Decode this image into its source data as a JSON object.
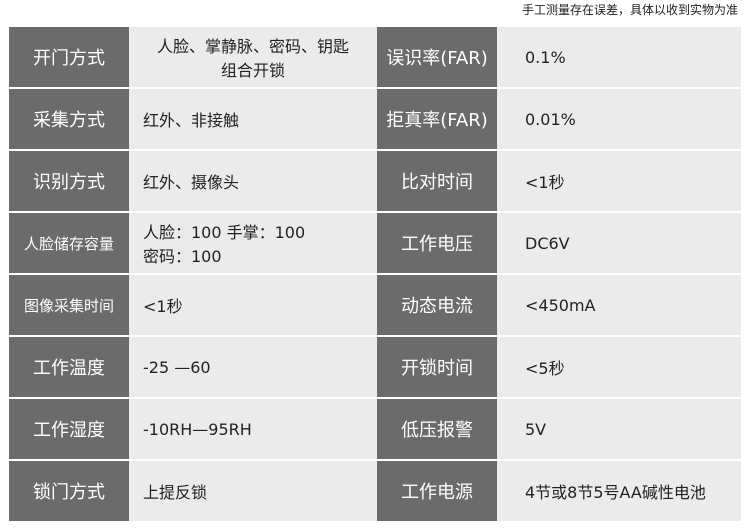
{
  "note": "手工测量存在误差，具体以收到实物为准",
  "rows": [
    {
      "l1": "开门方式",
      "v1": [
        "人脸、掌静脉、密码、钥匙",
        "组合开锁"
      ],
      "l2": "误识率(FAR)",
      "v2": "0.1%"
    },
    {
      "l1": "采集方式",
      "v1": [
        "红外、非接触"
      ],
      "l2": "拒真率(FAR)",
      "v2": "0.01%"
    },
    {
      "l1": "识别方式",
      "v1": [
        "红外、摄像头"
      ],
      "l2": "比对时间",
      "v2": "<1秒"
    },
    {
      "l1": "人脸储存容量",
      "v1": [
        "人脸：100 手掌：100",
        "密码：100"
      ],
      "l2": "工作电压",
      "v2": "DC6V"
    },
    {
      "l1": "图像采集时间",
      "v1": [
        "<1秒"
      ],
      "l2": "动态电流",
      "v2": "<450mA"
    },
    {
      "l1": "工作温度",
      "v1": [
        "-25 —60"
      ],
      "l2": "开锁时间",
      "v2": "<5秒"
    },
    {
      "l1": "工作湿度",
      "v1": [
        "-10RH—95RH"
      ],
      "l2": "低压报警",
      "v2": "5V"
    },
    {
      "l1": "锁门方式",
      "v1": [
        "上提反锁"
      ],
      "l2": "工作电源",
      "v2": "4节或8节5号AA碱性电池"
    }
  ]
}
